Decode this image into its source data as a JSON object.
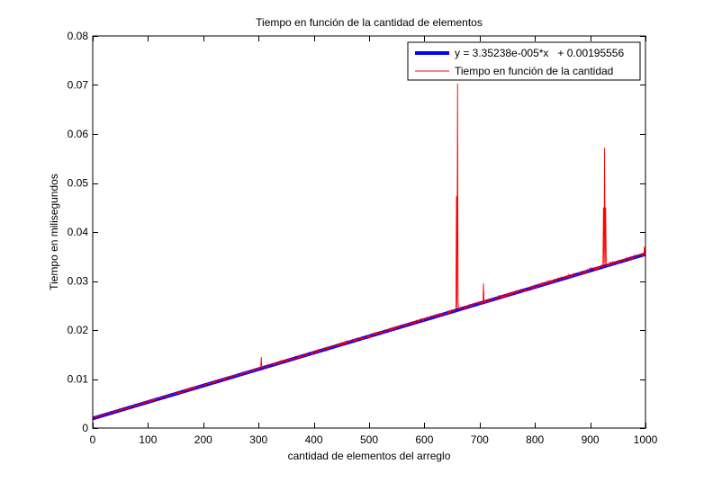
{
  "chart_data": {
    "type": "line",
    "title": "Tiempo en función de la cantidad de elementos",
    "xlabel": "cantidad de elementos del arreglo",
    "ylabel": "Tiempo en milisegundos",
    "xlim": [
      0,
      1000
    ],
    "ylim": [
      0,
      0.08
    ],
    "xticks": [
      0,
      100,
      200,
      300,
      400,
      500,
      600,
      700,
      800,
      900,
      1000
    ],
    "yticks": [
      0,
      0.01,
      0.02,
      0.03,
      0.04,
      0.05,
      0.06,
      0.07,
      0.08
    ],
    "xtick_labels": [
      "0",
      "100",
      "200",
      "300",
      "400",
      "500",
      "600",
      "700",
      "800",
      "900",
      "1000"
    ],
    "ytick_labels": [
      "0",
      "0.01",
      "0.02",
      "0.03",
      "0.04",
      "0.05",
      "0.06",
      "0.07",
      "0.08"
    ],
    "grid": false,
    "legend_position": "top-right",
    "series": [
      {
        "name": "y = 3.35238e-005*x   + 0.00195556",
        "kind": "fit",
        "color": "#0000ff",
        "slope": 3.35238e-05,
        "intercept": 0.00195556,
        "x": [
          0,
          1000
        ]
      },
      {
        "name": "Tiempo en función de la cantidad",
        "kind": "measured",
        "color": "#ff0000",
        "x_range": [
          1,
          1000
        ],
        "noise": 0.0004,
        "spikes": [
          {
            "x": 305,
            "y": 0.0145
          },
          {
            "x": 658,
            "y": 0.0473
          },
          {
            "x": 660,
            "y": 0.0703
          },
          {
            "x": 661,
            "y": 0.026
          },
          {
            "x": 707,
            "y": 0.0295
          },
          {
            "x": 924,
            "y": 0.045
          },
          {
            "x": 926,
            "y": 0.0572
          },
          {
            "x": 928,
            "y": 0.045
          },
          {
            "x": 998,
            "y": 0.037
          }
        ]
      }
    ]
  }
}
